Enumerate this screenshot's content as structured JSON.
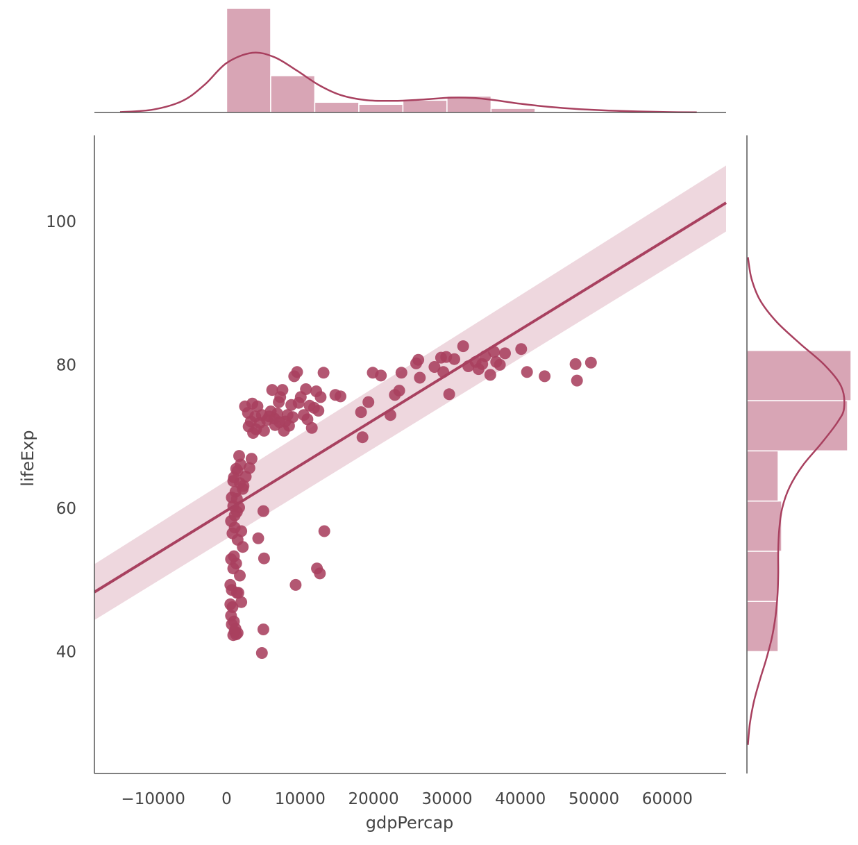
{
  "chart_data": {
    "type": "scatter",
    "kind": "jointplot-regression",
    "xlabel": "gdpPercap",
    "ylabel": "lifeExp",
    "xlim": [
      -18000,
      68000
    ],
    "ylim": [
      23,
      112
    ],
    "xticks": [
      -10000,
      0,
      10000,
      20000,
      30000,
      40000,
      50000,
      60000
    ],
    "xtick_labels": [
      "−10000",
      "0",
      "10000",
      "20000",
      "30000",
      "40000",
      "50000",
      "60000"
    ],
    "yticks": [
      40,
      60,
      80,
      100
    ],
    "ytick_labels": [
      "40",
      "60",
      "80",
      "100"
    ],
    "grid": false,
    "colors": {
      "points": "#a8405f",
      "line": "#a8405f",
      "band": "#e8c9d3",
      "hist_fill": "#d8a5b5",
      "axes": "#555555"
    },
    "regression": {
      "x": [
        -18000,
        68000
      ],
      "y": [
        48.3,
        102.6
      ],
      "ci_lower": [
        44.4,
        98.6
      ],
      "ci_upper": [
        52.2,
        107.8
      ]
    },
    "points": [
      [
        700,
        43.8
      ],
      [
        900,
        42.3
      ],
      [
        1100,
        42.8
      ],
      [
        1300,
        42.4
      ],
      [
        1500,
        42.6
      ],
      [
        600,
        45.0
      ],
      [
        800,
        46.2
      ],
      [
        500,
        46.6
      ],
      [
        1000,
        44.2
      ],
      [
        1200,
        43.2
      ],
      [
        2000,
        46.9
      ],
      [
        1400,
        48.2
      ],
      [
        700,
        48.6
      ],
      [
        1600,
        48.2
      ],
      [
        500,
        49.3
      ],
      [
        900,
        51.6
      ],
      [
        1800,
        50.6
      ],
      [
        1300,
        52.3
      ],
      [
        600,
        52.9
      ],
      [
        1000,
        53.3
      ],
      [
        2200,
        54.6
      ],
      [
        1500,
        55.6
      ],
      [
        800,
        56.5
      ],
      [
        1100,
        57.3
      ],
      [
        2000,
        56.8
      ],
      [
        600,
        58.2
      ],
      [
        1400,
        59.5
      ],
      [
        900,
        60.3
      ],
      [
        1700,
        60.1
      ],
      [
        700,
        61.5
      ],
      [
        1200,
        62.3
      ],
      [
        2200,
        62.7
      ],
      [
        1800,
        63.5
      ],
      [
        1000,
        64.3
      ],
      [
        1500,
        65.2
      ],
      [
        2600,
        64.4
      ],
      [
        1300,
        65.5
      ],
      [
        3100,
        65.6
      ],
      [
        1900,
        66.1
      ],
      [
        3400,
        66.9
      ],
      [
        1700,
        67.3
      ],
      [
        900,
        63.8
      ],
      [
        2300,
        63.1
      ],
      [
        1400,
        61.3
      ],
      [
        1100,
        59.0
      ],
      [
        4300,
        55.8
      ],
      [
        5000,
        59.6
      ],
      [
        5100,
        53.0
      ],
      [
        5000,
        43.1
      ],
      [
        4800,
        39.8
      ],
      [
        9400,
        49.3
      ],
      [
        12300,
        51.6
      ],
      [
        12700,
        50.9
      ],
      [
        13300,
        56.8
      ],
      [
        2500,
        74.2
      ],
      [
        2900,
        73.3
      ],
      [
        3300,
        72.1
      ],
      [
        3600,
        70.5
      ],
      [
        3900,
        72.8
      ],
      [
        4200,
        74.2
      ],
      [
        4500,
        71.9
      ],
      [
        4800,
        73.0
      ],
      [
        5100,
        70.8
      ],
      [
        5500,
        72.3
      ],
      [
        6000,
        73.5
      ],
      [
        6200,
        76.5
      ],
      [
        6600,
        71.6
      ],
      [
        6900,
        73.2
      ],
      [
        7100,
        74.8
      ],
      [
        7300,
        75.5
      ],
      [
        7600,
        76.5
      ],
      [
        7800,
        70.8
      ],
      [
        8000,
        72.1
      ],
      [
        8300,
        73.0
      ],
      [
        8500,
        71.5
      ],
      [
        9000,
        72.7
      ],
      [
        9200,
        78.4
      ],
      [
        9600,
        79.0
      ],
      [
        9800,
        74.7
      ],
      [
        10100,
        75.5
      ],
      [
        10500,
        73.0
      ],
      [
        10800,
        76.6
      ],
      [
        11000,
        72.4
      ],
      [
        11300,
        74.3
      ],
      [
        11600,
        71.2
      ],
      [
        11900,
        74.0
      ],
      [
        12200,
        76.3
      ],
      [
        12500,
        73.6
      ],
      [
        12800,
        75.5
      ],
      [
        13200,
        78.9
      ],
      [
        14800,
        75.8
      ],
      [
        15500,
        75.6
      ],
      [
        3000,
        71.4
      ],
      [
        4000,
        71.0
      ],
      [
        6500,
        72.5
      ],
      [
        7200,
        72.0
      ],
      [
        5800,
        72.8
      ],
      [
        8800,
        74.4
      ],
      [
        3500,
        74.6
      ],
      [
        18300,
        73.4
      ],
      [
        18500,
        69.9
      ],
      [
        19300,
        74.8
      ],
      [
        19900,
        78.9
      ],
      [
        21000,
        78.5
      ],
      [
        22300,
        73.0
      ],
      [
        22900,
        75.8
      ],
      [
        23500,
        76.4
      ],
      [
        23800,
        78.9
      ],
      [
        25800,
        80.2
      ],
      [
        26100,
        80.7
      ],
      [
        26300,
        78.2
      ],
      [
        28300,
        79.7
      ],
      [
        29200,
        81.0
      ],
      [
        29500,
        79.0
      ],
      [
        29900,
        81.1
      ],
      [
        30300,
        75.9
      ],
      [
        31000,
        80.8
      ],
      [
        32200,
        82.6
      ],
      [
        32900,
        79.8
      ],
      [
        33900,
        80.4
      ],
      [
        34300,
        79.4
      ],
      [
        34800,
        80.1
      ],
      [
        35200,
        81.2
      ],
      [
        35900,
        78.6
      ],
      [
        36400,
        81.8
      ],
      [
        36700,
        80.4
      ],
      [
        37200,
        80.0
      ],
      [
        37900,
        81.6
      ],
      [
        40100,
        82.2
      ],
      [
        40900,
        79.0
      ],
      [
        43300,
        78.4
      ],
      [
        47500,
        80.1
      ],
      [
        47700,
        77.8
      ],
      [
        49600,
        80.3
      ]
    ],
    "hist_x": {
      "bin_edges": [
        0,
        6000,
        12000,
        18000,
        24000,
        30000,
        36000,
        42000,
        48000
      ],
      "counts": [
        51,
        18,
        5,
        4,
        6,
        8,
        2,
        0.5
      ]
    },
    "hist_y": {
      "bin_edges": [
        40,
        47,
        54,
        61,
        68,
        75,
        82
      ],
      "counts": [
        9,
        9,
        10,
        9,
        29,
        30
      ]
    },
    "kde_x": {
      "x": [
        -14500,
        -10000,
        -6000,
        -3000,
        0,
        3500,
        6500,
        9500,
        12500,
        15500,
        19000,
        23000,
        27000,
        30500,
        33500,
        36500,
        40000,
        44000,
        48000,
        52000,
        56000,
        60000,
        64000
      ],
      "density": [
        0.3,
        2.0,
        8.0,
        19.0,
        34.0,
        41.0,
        38.0,
        29.0,
        19.0,
        12.0,
        8.5,
        8.0,
        9.0,
        10.2,
        10.0,
        8.5,
        6.0,
        3.8,
        2.3,
        1.3,
        0.7,
        0.3,
        0.1
      ]
    },
    "kde_y": {
      "y": [
        27,
        30,
        33,
        36,
        39,
        42,
        45,
        48,
        51,
        54,
        57,
        60,
        63,
        66,
        69,
        72,
        74,
        77,
        80,
        83,
        86,
        89,
        92,
        95
      ],
      "density": [
        0.3,
        0.9,
        2.1,
        3.9,
        5.9,
        7.6,
        8.7,
        9.3,
        9.5,
        9.5,
        9.8,
        10.7,
        13.0,
        17.0,
        22.5,
        27.5,
        29.5,
        28.6,
        23.5,
        16.0,
        9.0,
        4.0,
        1.4,
        0.3
      ]
    }
  }
}
